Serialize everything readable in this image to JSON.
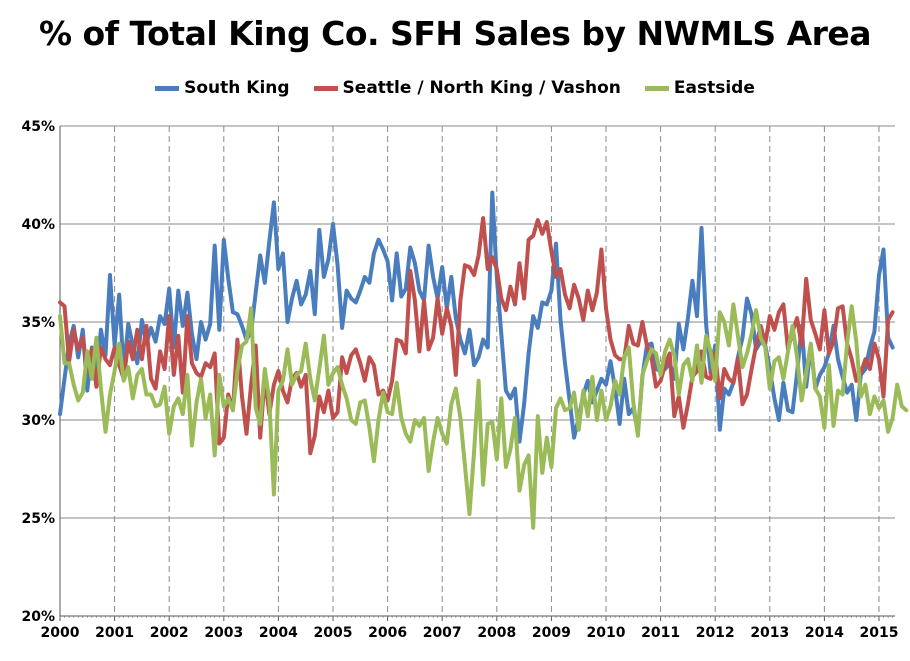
{
  "chart_data": {
    "type": "line",
    "title": "% of Total King Co. SFH Sales by NWMLS Area",
    "xlabel": "",
    "ylabel": "",
    "ylim": [
      20,
      45
    ],
    "yticks": [
      "20%",
      "25%",
      "30%",
      "35%",
      "40%",
      "45%"
    ],
    "xticks": [
      "2000",
      "2001",
      "2002",
      "2003",
      "2004",
      "2005",
      "2006",
      "2007",
      "2008",
      "2009",
      "2010",
      "2011",
      "2012",
      "2013",
      "2014",
      "2015"
    ],
    "grid": true,
    "legend": "top",
    "x_start": "2000-01",
    "x_end": "2015-05",
    "frequency": "monthly",
    "series": [
      {
        "name": "South King",
        "color": "#4a7dbe",
        "values": [
          30.3,
          32.1,
          33.9,
          34.8,
          33.2,
          34.6,
          31.5,
          33.7,
          32.3,
          34.6,
          33.3,
          37.4,
          33.8,
          36.4,
          32.5,
          34.9,
          33.8,
          32.9,
          35.1,
          33.9,
          34.7,
          34.0,
          35.3,
          34.9,
          36.7,
          33.7,
          36.6,
          34.8,
          36.5,
          34.4,
          33.1,
          35.0,
          34.1,
          34.9,
          38.9,
          34.6,
          39.2,
          37.2,
          35.5,
          35.4,
          34.8,
          34.1,
          34.5,
          36.5,
          38.4,
          37.0,
          39.1,
          41.1,
          37.7,
          38.5,
          35.0,
          36.2,
          37.1,
          35.9,
          36.4,
          37.6,
          35.4,
          39.7,
          37.3,
          38.2,
          40.0,
          37.9,
          34.7,
          36.6,
          36.2,
          36.0,
          36.6,
          37.3,
          37.0,
          38.5,
          39.2,
          38.7,
          38.1,
          36.1,
          38.5,
          36.3,
          36.7,
          38.8,
          38.0,
          36.6,
          36.1,
          38.9,
          37.3,
          36.2,
          37.8,
          35.7,
          37.3,
          35.2,
          34.1,
          33.4,
          34.6,
          32.8,
          33.2,
          34.1,
          33.7,
          41.6,
          37.3,
          34.4,
          31.5,
          31.1,
          31.6,
          28.9,
          30.8,
          33.4,
          35.3,
          34.7,
          36.0,
          35.9,
          36.6,
          39.0,
          35.1,
          32.9,
          31.0,
          29.1,
          30.1,
          31.3,
          32.0,
          30.9,
          31.5,
          32.1,
          31.8,
          33.0,
          31.6,
          29.8,
          32.1,
          30.3,
          30.6,
          29.4,
          32.2,
          33.8,
          33.9,
          32.6,
          32.5,
          32.6,
          32.9,
          32.1,
          34.9,
          33.6,
          35.2,
          37.1,
          35.3,
          39.8,
          34.9,
          32.4,
          33.8,
          29.5,
          31.6,
          31.3,
          31.9,
          33.2,
          34.2,
          36.2,
          35.4,
          33.6,
          34.0,
          33.8,
          32.6,
          31.1,
          30.0,
          31.9,
          30.5,
          30.4,
          32.4,
          34.8,
          31.7,
          33.8,
          31.6,
          32.3,
          32.7,
          33.4,
          34.8,
          33.1,
          32.2,
          31.4,
          31.8,
          30.0,
          32.3,
          32.6,
          33.7,
          34.5,
          37.4,
          38.7,
          34.2,
          33.7
        ]
      },
      {
        "name": "Seattle / North King / Vashon",
        "color": "#c0504d",
        "values": [
          36.0,
          35.8,
          33.0,
          34.6,
          33.6,
          34.2,
          32.5,
          33.6,
          31.7,
          33.7,
          33.1,
          32.8,
          33.7,
          32.8,
          32.1,
          34.0,
          33.1,
          34.6,
          33.1,
          34.8,
          32.1,
          31.6,
          33.5,
          32.6,
          35.3,
          32.3,
          34.3,
          31.4,
          35.3,
          32.9,
          32.4,
          32.2,
          32.9,
          32.7,
          33.4,
          28.8,
          29.1,
          31.3,
          30.5,
          34.1,
          31.2,
          29.3,
          31.8,
          33.8,
          29.1,
          32.2,
          30.3,
          31.8,
          32.5,
          31.5,
          30.9,
          32.1,
          32.4,
          31.7,
          32.3,
          28.3,
          29.2,
          31.2,
          30.4,
          31.5,
          30.1,
          30.4,
          33.2,
          32.4,
          33.3,
          33.6,
          32.9,
          32.0,
          33.2,
          32.8,
          31.3,
          31.5,
          31.0,
          32.0,
          34.1,
          34.0,
          33.4,
          37.6,
          36.1,
          33.5,
          36.1,
          33.6,
          34.2,
          36.2,
          34.4,
          35.7,
          34.8,
          32.3,
          36.1,
          37.9,
          37.8,
          37.4,
          38.4,
          40.3,
          37.7,
          38.3,
          37.7,
          36.2,
          35.6,
          36.8,
          35.9,
          38.0,
          36.2,
          39.2,
          39.4,
          40.2,
          39.5,
          40.1,
          38.6,
          37.3,
          37.7,
          36.4,
          35.7,
          36.9,
          36.2,
          35.1,
          36.6,
          35.6,
          36.5,
          38.7,
          35.7,
          34.1,
          33.3,
          33.1,
          33.1,
          34.8,
          33.9,
          33.8,
          35.0,
          33.8,
          33.2,
          31.7,
          32.0,
          32.8,
          33.4,
          30.2,
          31.2,
          29.6,
          30.8,
          32.2,
          32.5,
          33.5,
          32.2,
          32.1,
          33.4,
          31.1,
          32.6,
          32.1,
          31.9,
          33.1,
          30.8,
          31.3,
          32.6,
          33.8,
          34.8,
          33.9,
          35.3,
          34.6,
          35.5,
          35.9,
          33.6,
          34.5,
          35.2,
          33.8,
          37.2,
          35.1,
          34.4,
          33.6,
          35.6,
          33.4,
          34.0,
          35.7,
          35.8,
          33.9,
          33.1,
          32.0,
          32.4,
          33.1,
          32.6,
          33.9,
          33.1,
          31.2,
          35.1,
          35.5
        ]
      },
      {
        "name": "Eastside",
        "color": "#9bbb59",
        "values": [
          35.3,
          32.9,
          32.9,
          31.8,
          31.0,
          31.4,
          33.5,
          32.1,
          34.2,
          31.6,
          29.4,
          31.3,
          32.5,
          33.9,
          32.0,
          32.7,
          31.1,
          32.3,
          32.6,
          31.3,
          31.3,
          30.7,
          30.8,
          31.7,
          29.3,
          30.7,
          31.1,
          30.3,
          32.3,
          28.7,
          30.9,
          32.1,
          30.1,
          31.3,
          28.2,
          32.3,
          30.7,
          31.1,
          30.5,
          32.5,
          33.8,
          34.0,
          35.7,
          30.6,
          29.8,
          32.6,
          31.0,
          26.2,
          31.5,
          32.0,
          33.6,
          31.8,
          32.3,
          32.5,
          33.9,
          32.1,
          31.0,
          32.6,
          34.3,
          31.8,
          32.4,
          32.7,
          31.8,
          31.1,
          30.0,
          29.8,
          30.9,
          31.0,
          29.6,
          27.9,
          30.0,
          31.4,
          30.4,
          30.3,
          31.9,
          30.1,
          29.3,
          28.9,
          30.0,
          29.7,
          30.1,
          27.4,
          28.9,
          30.1,
          29.3,
          28.8,
          30.8,
          31.6,
          30.1,
          27.7,
          25.2,
          28.4,
          32.0,
          26.7,
          29.8,
          29.9,
          28.0,
          31.1,
          27.6,
          28.5,
          30.1,
          26.4,
          27.7,
          28.2,
          24.5,
          30.2,
          27.3,
          29.1,
          27.6,
          30.6,
          31.1,
          30.5,
          30.6,
          31.4,
          29.5,
          31.5,
          30.2,
          32.2,
          30.0,
          31.5,
          30.0,
          30.7,
          32.0,
          31.3,
          33.2,
          33.7,
          30.9,
          29.2,
          32.3,
          33.0,
          33.6,
          33.4,
          32.3,
          33.5,
          34.1,
          33.3,
          31.3,
          32.8,
          33.1,
          32.0,
          33.8,
          31.9,
          34.3,
          33.5,
          32.0,
          35.5,
          35.0,
          33.8,
          35.9,
          34.3,
          32.7,
          33.4,
          34.4,
          35.6,
          34.2,
          33.7,
          31.6,
          33.0,
          33.2,
          32.1,
          33.5,
          34.8,
          33.2,
          31.0,
          32.4,
          33.9,
          31.6,
          31.2,
          29.6,
          32.8,
          29.7,
          31.5,
          31.3,
          33.9,
          35.8,
          34.0,
          31.2,
          31.8,
          30.3,
          31.2,
          30.6,
          31.0,
          29.4,
          30.1,
          31.8,
          30.7,
          30.5
        ]
      }
    ]
  }
}
